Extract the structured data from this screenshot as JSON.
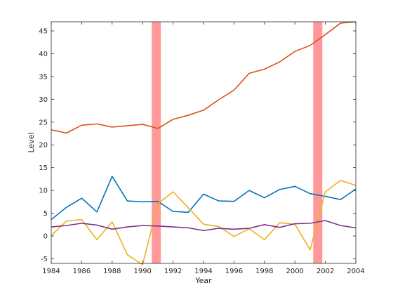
{
  "chart_data": {
    "type": "line",
    "xlabel": "Year",
    "ylabel": "Level",
    "xlim": [
      1984,
      2004
    ],
    "ylim": [
      -6,
      47
    ],
    "x_ticks": [
      1984,
      1986,
      1988,
      1990,
      1992,
      1994,
      1996,
      1998,
      2000,
      2002,
      2004
    ],
    "y_ticks": [
      -5,
      0,
      5,
      10,
      15,
      20,
      25,
      30,
      35,
      40,
      45
    ],
    "grid": false,
    "x": [
      1984,
      1985,
      1986,
      1987,
      1988,
      1989,
      1990,
      1991,
      1992,
      1993,
      1994,
      1995,
      1996,
      1997,
      1998,
      1999,
      2000,
      2001,
      2002,
      2003,
      2004
    ],
    "shaded_intervals": [
      {
        "start": 1990.6,
        "end": 1991.2
      },
      {
        "start": 2001.2,
        "end": 2001.8
      }
    ],
    "shade_color": "#ff9999",
    "series": [
      {
        "color": "#d95319",
        "values": [
          23.3,
          22.6,
          24.3,
          24.6,
          23.9,
          24.2,
          24.5,
          23.6,
          25.6,
          26.5,
          27.6,
          29.9,
          32.0,
          35.7,
          36.6,
          38.2,
          40.5,
          41.8,
          44.2,
          46.7,
          47.0
        ]
      },
      {
        "color": "#0072bd",
        "values": [
          3.6,
          6.3,
          8.3,
          5.3,
          13.1,
          7.7,
          7.5,
          7.6,
          5.4,
          5.2,
          9.2,
          7.7,
          7.6,
          10.0,
          8.4,
          10.2,
          10.9,
          9.3,
          8.7,
          8.0,
          10.3
        ]
      },
      {
        "color": "#edb120",
        "values": [
          0.1,
          3.3,
          3.6,
          -0.8,
          3.1,
          -4.1,
          -6.3,
          7.1,
          9.7,
          6.2,
          2.6,
          2.1,
          -0.1,
          1.6,
          -0.8,
          2.9,
          2.6,
          -3.0,
          9.7,
          12.2,
          11.1
        ]
      },
      {
        "color": "#7e2f8e",
        "values": [
          2.0,
          2.3,
          2.8,
          2.4,
          1.5,
          2.0,
          2.3,
          2.2,
          2.0,
          1.8,
          1.2,
          1.7,
          1.5,
          1.7,
          2.5,
          1.9,
          2.7,
          2.8,
          3.4,
          2.3,
          1.8
        ]
      }
    ]
  }
}
